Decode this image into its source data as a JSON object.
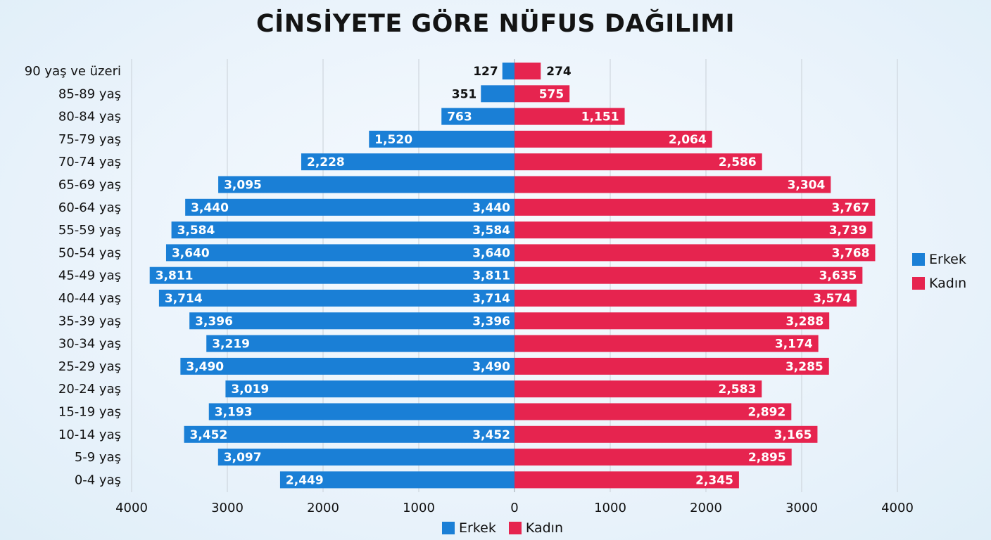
{
  "chart_data": {
    "type": "bar",
    "title": "CİNSİYETE GÖRE NÜFUS DAĞILIMI",
    "categories": [
      "90 yaş ve üzeri",
      "85-89 yaş",
      "80-84 yaş",
      "75-79 yaş",
      "70-74 yaş",
      "65-69 yaş",
      "60-64 yaş",
      "55-59 yaş",
      "50-54 yaş",
      "45-49 yaş",
      "40-44 yaş",
      "35-39 yaş",
      "30-34 yaş",
      "25-29 yaş",
      "20-24 yaş",
      "15-19 yaş",
      "10-14 yaş",
      "5-9 yaş",
      "0-4 yaş"
    ],
    "series": [
      {
        "name": "Erkek",
        "color": "#1a7fd6",
        "values": [
          127,
          351,
          763,
          1520,
          2228,
          3095,
          3440,
          3584,
          3640,
          3811,
          3714,
          3396,
          3219,
          3490,
          3019,
          3193,
          3452,
          3097,
          2449
        ]
      },
      {
        "name": "Kadın",
        "color": "#e6244f",
        "values": [
          274,
          575,
          1151,
          2064,
          2586,
          3304,
          3767,
          3739,
          3768,
          3635,
          3574,
          3288,
          3174,
          3285,
          2583,
          2892,
          3165,
          2895,
          2345
        ]
      }
    ],
    "x_ticks": [
      "4000",
      "3000",
      "2000",
      "1000",
      "0",
      "1000",
      "2000",
      "3000",
      "4000"
    ],
    "xlim": [
      -4000,
      4000
    ],
    "grid": true,
    "legend": [
      "right",
      "bottom"
    ]
  }
}
